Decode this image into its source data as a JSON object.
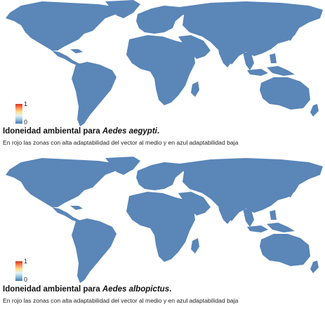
{
  "panels": [
    {
      "title_prefix": "Idoneidad ambiental para ",
      "species": "Aedes aegypti",
      "title_suffix": ".",
      "subtitle": "En rojo las zonas con alta adaptabilidad del vector al medio y en azul adaptabilidad baja",
      "legend": {
        "max_label": "1",
        "min_label": "0"
      }
    },
    {
      "title_prefix": "Idoneidad ambiental para ",
      "species": "Aedes albopictus",
      "title_suffix": ".",
      "subtitle": "En rojo las zonas con alta adaptabilidad del vector al medio y en azul adaptabilidad baja",
      "legend": {
        "max_label": "1",
        "min_label": "0"
      }
    }
  ],
  "colors": {
    "high": "#d7301f",
    "mid_high": "#fc8d59",
    "mid": "#fee090",
    "low_mid": "#91bfdb",
    "low": "#4575b4"
  }
}
